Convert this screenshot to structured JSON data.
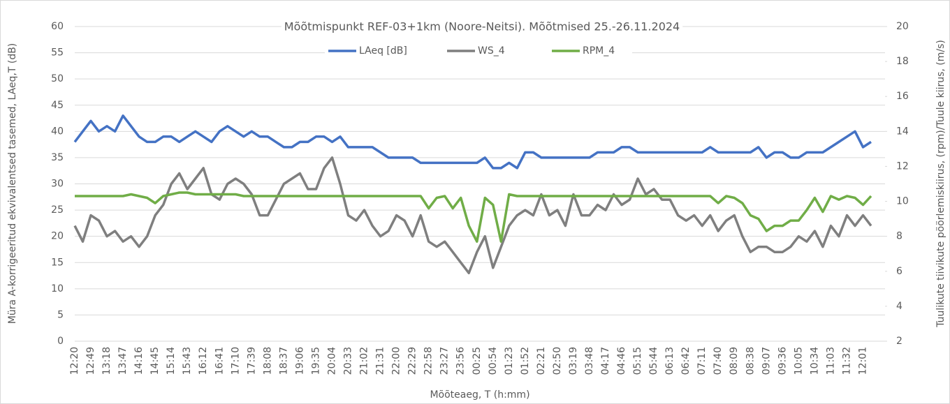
{
  "chart_data": {
    "type": "line",
    "title": "Mõõtmispunkt REF-03+1km (Noore-Neitsi). Mõõtmised 25.-26.11.2024",
    "x_label": "Mõõteaeg, T (h:mm)",
    "y_label": "Müra A-korrigeeritud ekvivalentsed tasemed, LAeq,T (dB)",
    "y2_label": "Tuulikute tiivikute pöörlemiskiirus, (rpm)/Tuule kiirus, (m/s)",
    "categories": [
      "12:20",
      null,
      "12:49",
      null,
      "13:18",
      null,
      "13:47",
      null,
      "14:16",
      null,
      "14:45",
      null,
      "15:14",
      null,
      "15:43",
      null,
      "16:12",
      null,
      "16:41",
      null,
      "17:10",
      null,
      "17:39",
      null,
      "18:08",
      null,
      "18:37",
      null,
      "19:06",
      null,
      "19:35",
      null,
      "20:04",
      null,
      "20:33",
      null,
      "21:02",
      null,
      "21:31",
      null,
      "22:00",
      null,
      "22:29",
      null,
      "22:58",
      null,
      "23:27",
      null,
      "23:56",
      null,
      "00:25",
      null,
      "00:54",
      null,
      "01:23",
      null,
      "01:52",
      null,
      "02:21",
      null,
      "02:50",
      null,
      "03:19",
      null,
      "03:48",
      null,
      "04:17",
      null,
      "04:46",
      null,
      "05:15",
      null,
      "05:44",
      null,
      "06:13",
      null,
      "06:42",
      null,
      "07:11",
      null,
      "07:40",
      null,
      "08:09",
      null,
      "08:38",
      null,
      "09:07",
      null,
      "09:36",
      null,
      "10:05",
      null,
      "10:34",
      null,
      "11:03",
      null,
      "11:32",
      null,
      "12:01",
      null
    ],
    "series": [
      {
        "name": "LAeq [dB]",
        "color": "#4472c4",
        "axis": "y",
        "values": [
          38,
          40,
          42,
          40,
          41,
          40,
          43,
          41,
          39,
          38,
          38,
          39,
          39,
          38,
          39,
          40,
          39,
          38,
          40,
          41,
          40,
          39,
          40,
          39,
          39,
          38,
          37,
          37,
          38,
          38,
          39,
          39,
          38,
          39,
          37,
          37,
          37,
          37,
          36,
          35,
          35,
          35,
          35,
          34,
          34,
          34,
          34,
          34,
          34,
          34,
          34,
          35,
          33,
          33,
          34,
          33,
          36,
          36,
          35,
          35,
          35,
          35,
          35,
          35,
          35,
          36,
          36,
          36,
          37,
          37,
          36,
          36,
          36,
          36,
          36,
          36,
          36,
          36,
          36,
          37,
          36,
          36,
          36,
          36,
          36,
          37,
          35,
          36,
          36,
          35,
          35,
          36,
          36,
          36,
          37,
          38,
          39,
          40,
          37,
          38
        ]
      },
      {
        "name": "WS_4",
        "color": "#7f7f7f",
        "axis": "y2",
        "values": [
          8.6,
          7.7,
          9.2,
          8.9,
          8,
          8.3,
          7.7,
          8,
          7.4,
          8,
          9.2,
          9.8,
          11,
          11.6,
          10.7,
          11.3,
          11.9,
          10.4,
          10.1,
          11,
          11.3,
          11,
          10.4,
          9.2,
          9.2,
          10.1,
          11,
          11.3,
          11.6,
          10.7,
          10.7,
          11.9,
          12.5,
          11,
          9.2,
          8.9,
          9.5,
          8.6,
          8,
          8.3,
          9.2,
          8.9,
          8,
          9.2,
          7.7,
          7.4,
          7.7,
          7.1,
          6.5,
          5.9,
          7.1,
          8,
          6.2,
          7.4,
          8.6,
          9.2,
          9.5,
          9.2,
          10.4,
          9.2,
          9.5,
          8.6,
          10.4,
          9.2,
          9.2,
          9.8,
          9.5,
          10.4,
          9.8,
          10.1,
          11.3,
          10.4,
          10.7,
          10.1,
          10.1,
          9.2,
          8.9,
          9.2,
          8.6,
          9.2,
          8.3,
          8.9,
          9.2,
          8,
          7.1,
          7.4,
          7.4,
          7.1,
          7.1,
          7.4,
          8,
          7.7,
          8.3,
          7.4,
          8.6,
          8,
          9.2,
          8.6,
          9.2,
          8.6
        ]
      },
      {
        "name": "RPM_4",
        "color": "#70ad47",
        "axis": "y2",
        "values": [
          10.3,
          10.3,
          10.3,
          10.3,
          10.3,
          10.3,
          10.3,
          10.4,
          10.3,
          10.2,
          9.9,
          10.3,
          10.4,
          10.5,
          10.5,
          10.4,
          10.4,
          10.4,
          10.4,
          10.4,
          10.4,
          10.3,
          10.3,
          10.3,
          10.3,
          10.3,
          10.3,
          10.3,
          10.3,
          10.3,
          10.3,
          10.3,
          10.3,
          10.3,
          10.3,
          10.3,
          10.3,
          10.3,
          10.3,
          10.3,
          10.3,
          10.3,
          10.3,
          10.3,
          9.6,
          10.2,
          10.3,
          9.6,
          10.2,
          8.6,
          7.7,
          10.2,
          9.8,
          7.7,
          10.4,
          10.3,
          10.3,
          10.3,
          10.3,
          10.3,
          10.3,
          10.3,
          10.3,
          10.3,
          10.3,
          10.3,
          10.3,
          10.3,
          10.3,
          10.3,
          10.3,
          10.3,
          10.3,
          10.3,
          10.3,
          10.3,
          10.3,
          10.3,
          10.3,
          10.3,
          9.9,
          10.3,
          10.2,
          9.9,
          9.2,
          9.0,
          8.3,
          8.6,
          8.6,
          8.9,
          8.9,
          9.5,
          10.2,
          9.4,
          10.3,
          10.1,
          10.3,
          10.2,
          9.8,
          10.3
        ]
      }
    ],
    "ylim": [
      0,
      60
    ],
    "yticks": [
      0,
      5,
      10,
      15,
      20,
      25,
      30,
      35,
      40,
      45,
      50,
      55,
      60
    ],
    "y2lim": [
      2,
      20
    ],
    "y2ticks": [
      2,
      4,
      6,
      8,
      10,
      12,
      14,
      16,
      18,
      20
    ],
    "grid": true,
    "legend": "top"
  }
}
